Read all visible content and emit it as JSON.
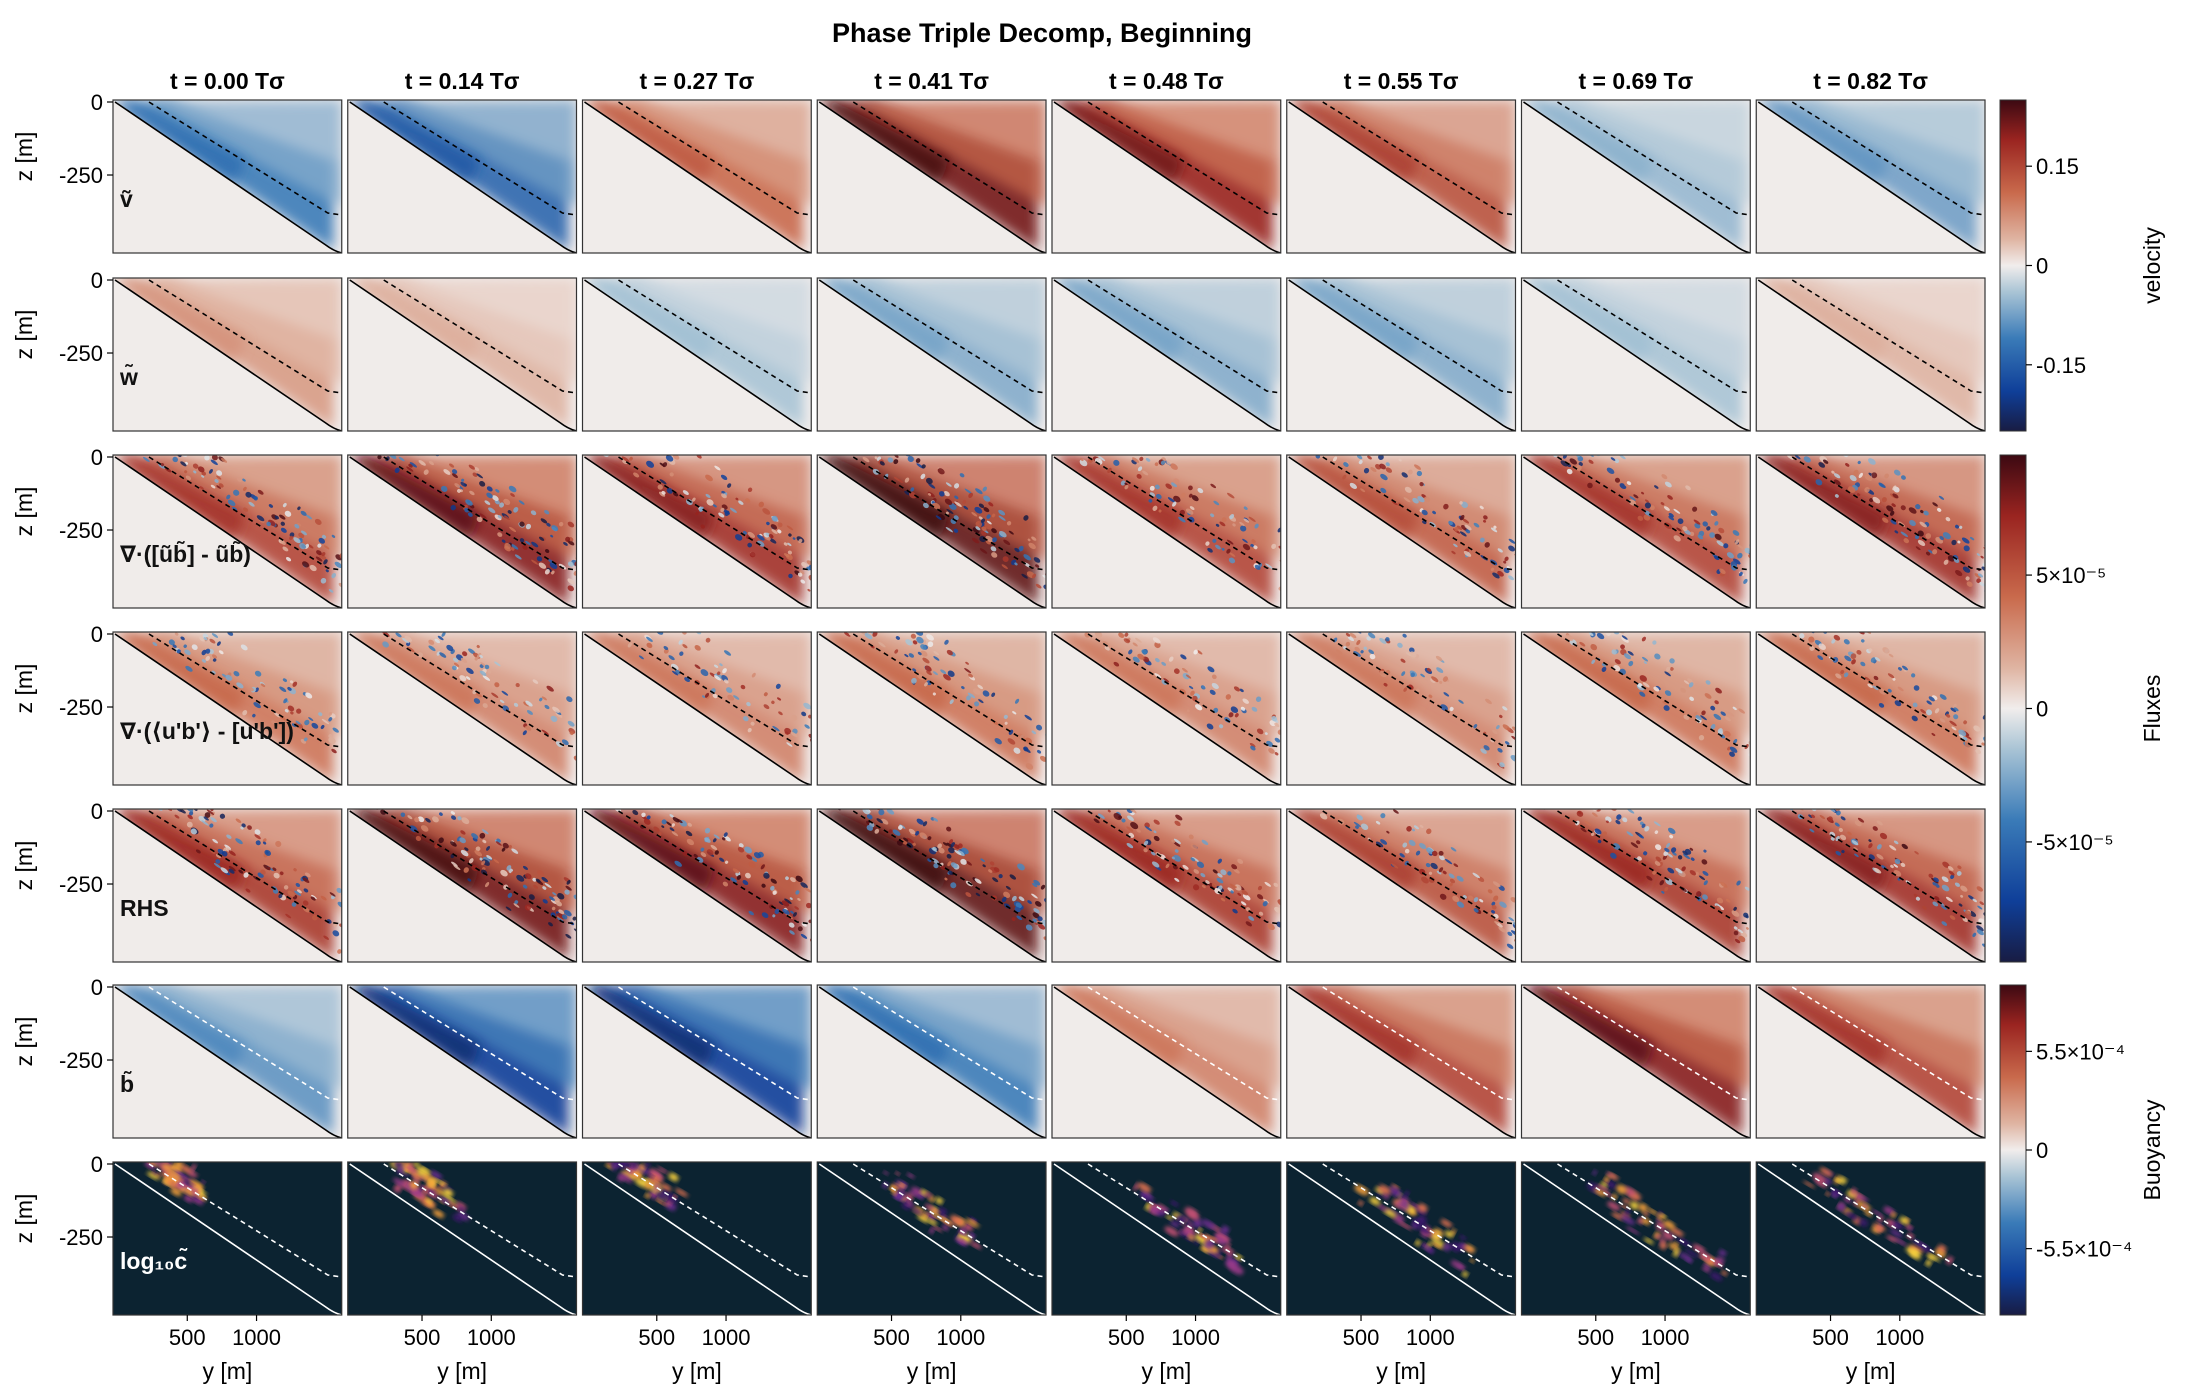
{
  "chart_data": {
    "type": "heatmap",
    "title": "Phase Triple Decomp, Beginning",
    "columns": [
      {
        "label": "t = 0.00 Tσ",
        "t": 0.0
      },
      {
        "label": "t = 0.14 Tσ",
        "t": 0.14
      },
      {
        "label": "t = 0.27 Tσ",
        "t": 0.27
      },
      {
        "label": "t = 0.41 Tσ",
        "t": 0.41
      },
      {
        "label": "t = 0.48 Tσ",
        "t": 0.48
      },
      {
        "label": "t = 0.55 Tσ",
        "t": 0.55
      },
      {
        "label": "t = 0.69 Tσ",
        "t": 0.69
      },
      {
        "label": "t = 0.82 Tσ",
        "t": 0.82
      }
    ],
    "rows": [
      {
        "label": "ṽ",
        "field": "velocity",
        "colormap": "balance",
        "intensity": [
          -0.45,
          -0.55,
          0.45,
          0.85,
          0.75,
          0.55,
          -0.2,
          -0.3
        ]
      },
      {
        "label": "w̃",
        "field": "velocity",
        "colormap": "balance",
        "intensity": [
          0.25,
          0.15,
          -0.15,
          -0.25,
          -0.25,
          -0.25,
          -0.15,
          0.15
        ]
      },
      {
        "label": "∇·([ũb̃] - ũb̃)",
        "field": "Fluxes",
        "colormap": "balance",
        "intensity": [
          0.6,
          0.8,
          0.7,
          0.9,
          0.6,
          0.5,
          0.6,
          0.7
        ]
      },
      {
        "label": "∇·(⟨u'b'⟩ - [u'b'])",
        "field": "Fluxes",
        "colormap": "balance",
        "intensity": [
          0.4,
          0.35,
          0.35,
          0.4,
          0.35,
          0.35,
          0.4,
          0.4
        ]
      },
      {
        "label": "RHS",
        "field": "Fluxes",
        "colormap": "balance",
        "intensity": [
          0.65,
          0.85,
          0.8,
          0.9,
          0.65,
          0.55,
          0.65,
          0.7
        ]
      },
      {
        "label": "b̃",
        "field": "Buoyancy",
        "colormap": "balance",
        "intensity": [
          -0.35,
          -0.75,
          -0.75,
          -0.45,
          0.35,
          0.6,
          0.8,
          0.6
        ]
      },
      {
        "label": "log₁₀c̃",
        "field": "tracer",
        "colormap": "plasma"
      }
    ],
    "xlabel": "y [m]",
    "ylabel": "z [m]",
    "xticks": [
      500,
      1000
    ],
    "yticks": [
      0,
      -250
    ],
    "xlim": [
      0,
      1500
    ],
    "ylim": [
      -500,
      0
    ],
    "colorbars": [
      {
        "label": "velocity",
        "ticks": [
          "0.15",
          "0",
          "-0.15"
        ],
        "tick_values": [
          0.15,
          0,
          -0.15
        ],
        "range": [
          -0.25,
          0.25
        ]
      },
      {
        "label": "Fluxes",
        "ticks": [
          "5×10⁻⁵",
          "0",
          "-5×10⁻⁵"
        ],
        "tick_values": [
          5e-05,
          0,
          -5e-05
        ],
        "range": [
          -9.5e-05,
          9.5e-05
        ]
      },
      {
        "label": "Buoyancy",
        "ticks": [
          "5.5×10⁻⁴",
          "0",
          "-5.5×10⁻⁴"
        ],
        "tick_values": [
          0.00055,
          0,
          -0.00055
        ],
        "range": [
          -0.00092,
          0.00092
        ]
      }
    ]
  },
  "colors": {
    "background_tracer": "#0c2331",
    "slope_fill": "#f0ecea",
    "neutral": "#f1edec"
  }
}
